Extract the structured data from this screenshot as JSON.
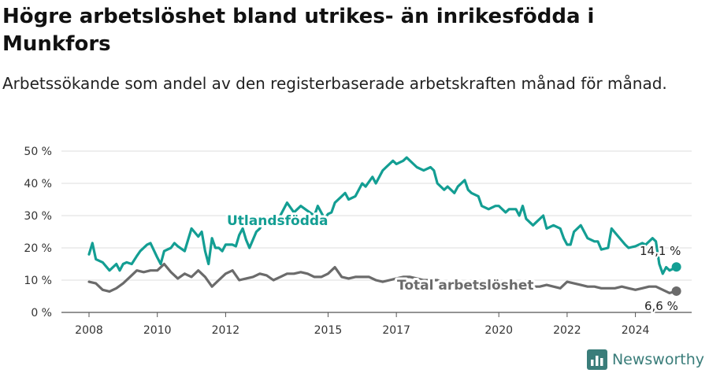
{
  "title": "Högre arbetslöshet bland utrikes- än inrikesfödda i Munkfors",
  "subtitle": "Arbetssökande som andel av den registerbaserade arbetskraften månad för månad.",
  "brand": {
    "name": "Newsworthy",
    "icon": "bar-chart-logo-icon"
  },
  "colors": {
    "foreign": "#139e93",
    "total": "#6b6b6b",
    "grid": "#dddddd"
  },
  "chart_data": {
    "type": "line",
    "ylim": [
      0,
      50
    ],
    "yticks": [
      0,
      10,
      20,
      30,
      40,
      50
    ],
    "ytick_labels": [
      "0 %",
      "10 %",
      "20 %",
      "30 %",
      "40 %",
      "50 %"
    ],
    "xticks": [
      2008,
      2010,
      2012,
      2015,
      2017,
      2020,
      2022,
      2024
    ],
    "xtick_labels": [
      "2008",
      "2010",
      "2012",
      "2015",
      "2017",
      "2020",
      "2022",
      "2024"
    ],
    "grid": true,
    "series": [
      {
        "name": "Utlandsfödda",
        "key": "foreign",
        "end_label": "14,1 %",
        "x": [
          2008.0,
          2008.1,
          2008.2,
          2008.4,
          2008.6,
          2008.8,
          2008.9,
          2009.0,
          2009.1,
          2009.25,
          2009.4,
          2009.5,
          2009.7,
          2009.8,
          2010.0,
          2010.1,
          2010.2,
          2010.4,
          2010.5,
          2010.6,
          2010.8,
          2011.0,
          2011.2,
          2011.3,
          2011.4,
          2011.5,
          2011.6,
          2011.7,
          2011.8,
          2011.9,
          2012.0,
          2012.2,
          2012.3,
          2012.4,
          2012.5,
          2012.6,
          2012.7,
          2012.9,
          2013.0,
          2013.15,
          2013.3,
          2013.5,
          2013.6,
          2013.8,
          2014.0,
          2014.2,
          2014.4,
          2014.6,
          2014.7,
          2014.9,
          2015.0,
          2015.1,
          2015.2,
          2015.4,
          2015.5,
          2015.6,
          2015.8,
          2016.0,
          2016.1,
          2016.3,
          2016.4,
          2016.6,
          2016.7,
          2016.9,
          2017.0,
          2017.2,
          2017.3,
          2017.5,
          2017.6,
          2017.8,
          2018.0,
          2018.1,
          2018.2,
          2018.4,
          2018.5,
          2018.7,
          2018.8,
          2019.0,
          2019.1,
          2019.2,
          2019.4,
          2019.5,
          2019.7,
          2019.9,
          2020.0,
          2020.2,
          2020.3,
          2020.5,
          2020.6,
          2020.7,
          2020.8,
          2021.0,
          2021.1,
          2021.3,
          2021.4,
          2021.6,
          2021.8,
          2021.9,
          2022.0,
          2022.1,
          2022.2,
          2022.4,
          2022.6,
          2022.8,
          2022.9,
          2023.0,
          2023.2,
          2023.3,
          2023.5,
          2023.7,
          2023.8,
          2024.0,
          2024.2,
          2024.3,
          2024.5,
          2024.6,
          2024.7,
          2024.8,
          2024.9,
          2025.0,
          2025.1,
          2025.2
        ],
        "y": [
          18,
          21.5,
          16.5,
          15.5,
          13,
          15,
          13,
          15,
          15.5,
          15,
          17.5,
          19,
          21,
          21.5,
          17,
          15,
          19,
          20,
          21.5,
          20.5,
          19,
          26,
          23.5,
          25,
          19,
          15,
          23,
          20,
          20,
          19,
          21,
          21,
          20.5,
          24,
          26,
          22.5,
          20,
          25,
          26,
          29,
          29.5,
          27,
          30,
          34,
          31,
          33,
          31.5,
          30,
          33,
          29,
          30.5,
          31,
          34,
          36,
          37,
          35,
          36,
          40,
          39,
          42,
          40,
          44,
          45,
          47,
          46,
          47,
          48,
          46,
          45,
          44,
          45,
          44,
          40,
          38,
          39,
          37,
          39,
          41,
          38,
          37,
          36,
          33,
          32,
          33,
          33,
          31,
          32,
          32,
          30,
          33,
          29,
          27,
          28,
          30,
          26,
          27,
          26,
          23,
          21,
          21,
          25,
          27,
          23,
          22,
          22,
          19.5,
          20,
          26,
          23.5,
          21,
          20,
          20.5,
          21.5,
          21,
          23,
          22,
          15,
          12,
          14,
          13,
          13.5,
          14.1
        ]
      },
      {
        "name": "Total arbetslöshet",
        "key": "total",
        "end_label": "6,6 %",
        "x": [
          2008.0,
          2008.2,
          2008.4,
          2008.6,
          2008.8,
          2009.0,
          2009.2,
          2009.4,
          2009.6,
          2009.8,
          2010.0,
          2010.2,
          2010.4,
          2010.6,
          2010.8,
          2011.0,
          2011.2,
          2011.4,
          2011.6,
          2011.8,
          2012.0,
          2012.2,
          2012.4,
          2012.6,
          2012.8,
          2013.0,
          2013.2,
          2013.4,
          2013.6,
          2013.8,
          2014.0,
          2014.2,
          2014.4,
          2014.6,
          2014.8,
          2015.0,
          2015.2,
          2015.4,
          2015.6,
          2015.8,
          2016.0,
          2016.2,
          2016.4,
          2016.6,
          2016.8,
          2017.0,
          2017.2,
          2017.4,
          2017.6,
          2017.8,
          2018.0,
          2018.2,
          2018.4,
          2018.6,
          2018.8,
          2019.0,
          2019.2,
          2019.4,
          2019.6,
          2019.8,
          2020.0,
          2020.2,
          2020.4,
          2020.6,
          2020.8,
          2021.0,
          2021.2,
          2021.4,
          2021.6,
          2021.8,
          2022.0,
          2022.2,
          2022.4,
          2022.6,
          2022.8,
          2023.0,
          2023.2,
          2023.4,
          2023.6,
          2023.8,
          2024.0,
          2024.2,
          2024.4,
          2024.6,
          2024.8,
          2025.0,
          2025.2
        ],
        "y": [
          9.5,
          9,
          7,
          6.5,
          7.5,
          9,
          11,
          13,
          12.5,
          13,
          13,
          15,
          12.5,
          10.5,
          12,
          11,
          13,
          11,
          8,
          10,
          12,
          13,
          10,
          10.5,
          11,
          12,
          11.5,
          10,
          11,
          12,
          12,
          12.5,
          12,
          11,
          11,
          12,
          14,
          11,
          10.5,
          11,
          11,
          11,
          10,
          9.5,
          10,
          10.5,
          11,
          11,
          10.5,
          10,
          10,
          10,
          9,
          9,
          9.5,
          9,
          8.5,
          8.5,
          8,
          8.5,
          8,
          7.5,
          7.5,
          7.5,
          8,
          8,
          8,
          8.5,
          8,
          7.5,
          9.5,
          9,
          8.5,
          8,
          8,
          7.5,
          7.5,
          7.5,
          8,
          7.5,
          7,
          7.5,
          8,
          8,
          7,
          6,
          6.6
        ]
      }
    ]
  }
}
